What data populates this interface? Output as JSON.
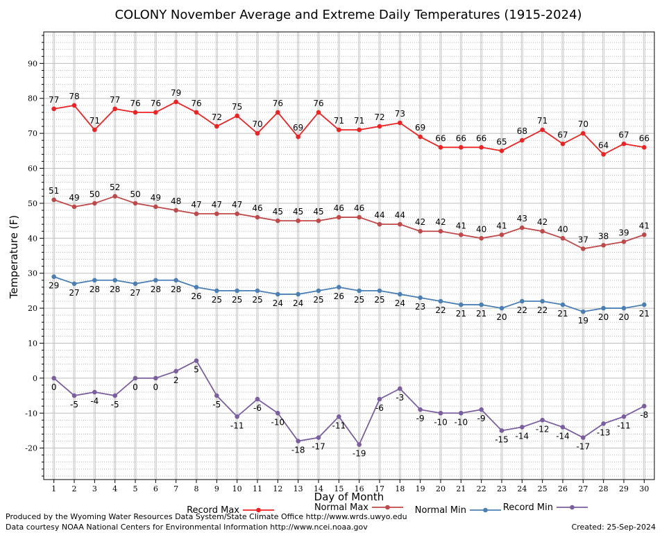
{
  "footer": {
    "line1": "Produced by the Wyoming Water Resources Data System/State Climate Office http://www.wrds.uwyo.edu",
    "line2": "Data courtesy NOAA National Centers for Environmental Information http://www.ncei.noaa.gov",
    "created": "Created:  25-Sep-2024"
  },
  "chart_data": {
    "type": "line",
    "title": "COLONY November Average and Extreme Daily Temperatures (1915-2024)",
    "xlabel": "Day of Month",
    "ylabel": "Temperature (F)",
    "xlim": [
      0.5,
      30.5
    ],
    "ylim": [
      -29,
      99
    ],
    "yticks": [
      -20,
      -10,
      0,
      10,
      20,
      30,
      40,
      50,
      60,
      70,
      80,
      90
    ],
    "x": [
      1,
      2,
      3,
      4,
      5,
      6,
      7,
      8,
      9,
      10,
      11,
      12,
      13,
      14,
      15,
      16,
      17,
      18,
      19,
      20,
      21,
      22,
      23,
      24,
      25,
      26,
      27,
      28,
      29,
      30
    ],
    "grid": true,
    "legend_position": "bottom",
    "series": [
      {
        "name": "Record Max",
        "color": "#ee2222",
        "label_pos": "above",
        "values": [
          77,
          78,
          71,
          77,
          76,
          76,
          79,
          76,
          72,
          75,
          70,
          76,
          69,
          76,
          71,
          71,
          72,
          73,
          69,
          66,
          66,
          66,
          65,
          68,
          71,
          67,
          70,
          64,
          67,
          66
        ]
      },
      {
        "name": "Normal Max",
        "color": "#c04848",
        "label_pos": "above",
        "values": [
          51,
          49,
          50,
          52,
          50,
          49,
          48,
          47,
          47,
          47,
          46,
          45,
          45,
          45,
          46,
          46,
          44,
          44,
          42,
          42,
          41,
          40,
          41,
          43,
          42,
          40,
          37,
          38,
          39,
          41
        ]
      },
      {
        "name": "Normal Min",
        "color": "#4a7fb5",
        "label_pos": "below",
        "values": [
          29,
          27,
          28,
          28,
          27,
          28,
          28,
          26,
          25,
          25,
          25,
          24,
          24,
          25,
          26,
          25,
          25,
          24,
          23,
          22,
          21,
          21,
          20,
          22,
          22,
          21,
          19,
          20,
          20,
          21
        ]
      },
      {
        "name": "Record Min",
        "color": "#7a5ea0",
        "label_pos": "below",
        "values": [
          0,
          -5,
          -4,
          -5,
          0,
          0,
          2,
          5,
          -5,
          -11,
          -6,
          -10,
          -18,
          -17,
          -11,
          -19,
          -6,
          -3,
          -9,
          -10,
          -10,
          -9,
          -15,
          -14,
          -12,
          -14,
          -17,
          -13,
          -11,
          -8
        ]
      }
    ]
  }
}
